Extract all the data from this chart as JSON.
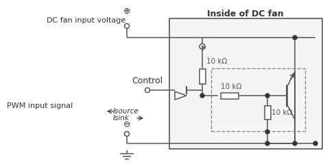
{
  "title": "Inside of DC fan",
  "dc_label": "DC fan input voltage",
  "pwm_label": "PWM input signal",
  "control_label": "Control",
  "isource_label": "Isource",
  "isink_label": "Isink",
  "res1_label": "10 kΩ",
  "res2_label": "10 kΩ",
  "res3_label": "10 kΩ",
  "line_color": "#555555",
  "text_color": "#333333",
  "label_color": "#555555",
  "bg_color": "#ffffff"
}
